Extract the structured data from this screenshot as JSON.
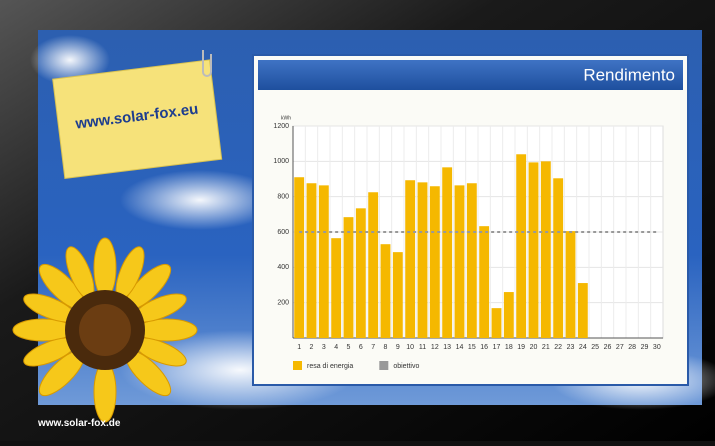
{
  "note": "www.solar-fox.eu",
  "footer": "www.solar-fox.de",
  "chart_data": {
    "type": "bar",
    "title": "Rendimento",
    "y_label": "kWh",
    "categories": [
      "1",
      "2",
      "3",
      "4",
      "5",
      "6",
      "7",
      "8",
      "9",
      "10",
      "11",
      "12",
      "13",
      "14",
      "15",
      "16",
      "17",
      "18",
      "19",
      "20",
      "21",
      "22",
      "23",
      "24",
      "25",
      "26",
      "27",
      "28",
      "29",
      "30"
    ],
    "series": [
      {
        "name": "resa di energia",
        "type": "bar",
        "color": "#f5b800",
        "values": [
          910,
          876,
          864,
          565,
          684,
          734,
          825,
          531,
          486,
          893,
          881,
          859,
          966,
          864,
          876,
          633,
          169,
          260,
          1040,
          994,
          1000,
          904,
          605,
          311,
          null,
          null,
          null,
          null,
          null,
          null
        ]
      },
      {
        "name": "obiettivo",
        "type": "line",
        "color": "#999999",
        "values": [
          600,
          600,
          600,
          600,
          600,
          600,
          600,
          600,
          600,
          600,
          600,
          600,
          600,
          600,
          600,
          600,
          600,
          600,
          600,
          600,
          600,
          600,
          600,
          600,
          600,
          600,
          600,
          600,
          600,
          600
        ]
      }
    ],
    "ylim": [
      0,
      1200
    ],
    "yticks": [
      200,
      400,
      600,
      800,
      1000,
      1200
    ],
    "grid": true
  }
}
